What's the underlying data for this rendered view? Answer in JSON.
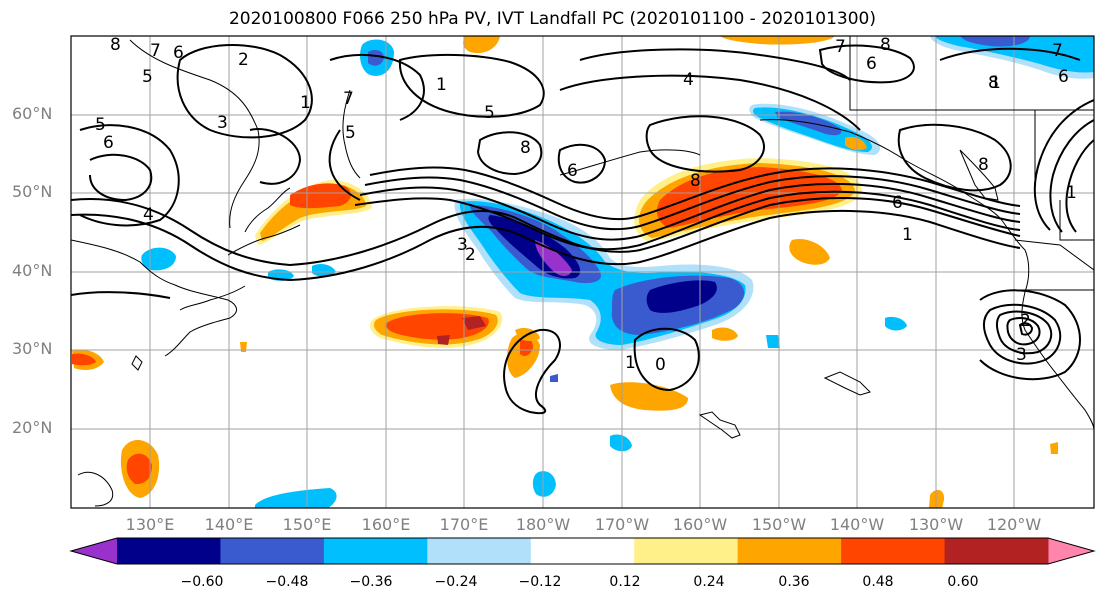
{
  "title": "2020100800 F066 250 hPa PV, IVT Landfall PC (2020101100 - 2020101300)",
  "lat_labels": [
    "60°N",
    "50°N",
    "40°N",
    "30°N",
    "20°N"
  ],
  "lon_labels": [
    "130°E",
    "140°E",
    "150°E",
    "160°E",
    "170°E",
    "180°W",
    "170°W",
    "160°W",
    "150°W",
    "140°W",
    "130°W",
    "120°W"
  ],
  "colorbar": {
    "ticks": [
      "−0.60",
      "−0.48",
      "−0.36",
      "−0.24",
      "−0.12",
      "0.12",
      "0.24",
      "0.36",
      "0.48",
      "0.60"
    ],
    "colors": [
      "#9932cc",
      "#00008b",
      "#3a5bd0",
      "#00bfff",
      "#b0e0fa",
      "#ffffff",
      "#fff08a",
      "#ffa500",
      "#ff4500",
      "#b22222",
      "#ff85ad"
    ]
  },
  "contour_labels": [
    "8",
    "7",
    "6",
    "5",
    "6",
    "2",
    "1",
    "3",
    "5",
    "4",
    "5",
    "7",
    "1",
    "4",
    "5",
    "8",
    "6",
    "8",
    "7",
    "6",
    "1",
    "3",
    "2",
    "8",
    "6",
    "1",
    "0",
    "1",
    "8",
    "7",
    "6",
    "1",
    "2",
    "3",
    "8"
  ],
  "colors": {
    "grid": "#a0a0a0",
    "contour": "#000000",
    "axis_label": "#808080"
  }
}
